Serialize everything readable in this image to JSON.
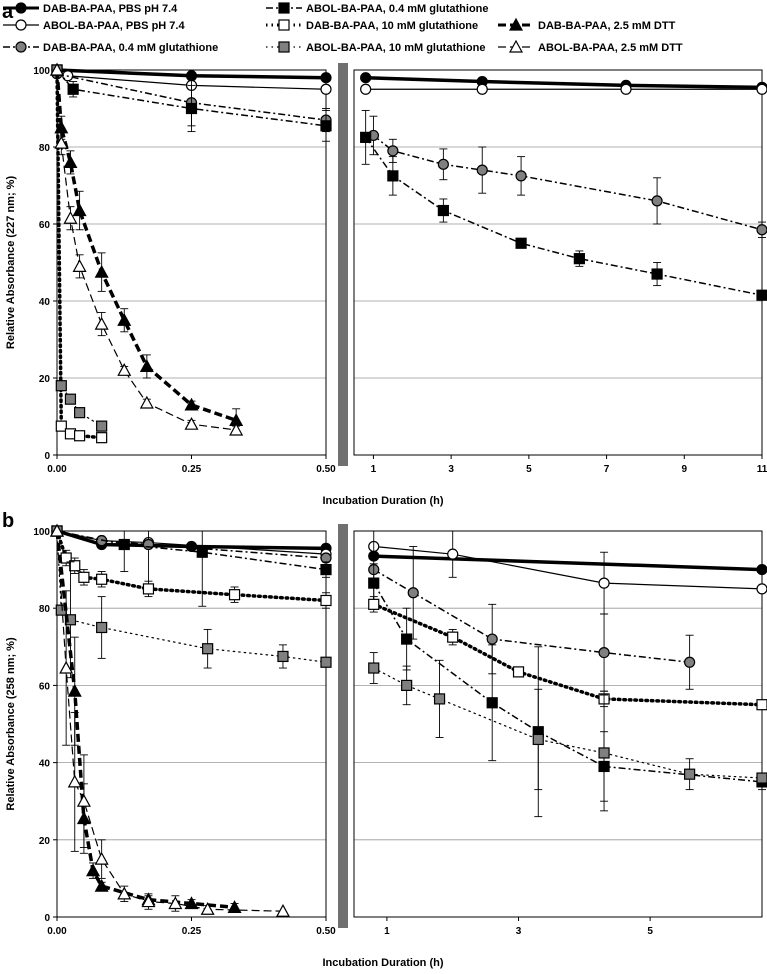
{
  "legend": [
    {
      "label": "DAB-BA-PAA, PBS pH 7.4",
      "marker": "circle",
      "fill": "#000000",
      "dash": "solid",
      "width": 3.5
    },
    {
      "label": "ABOL-BA-PAA, PBS pH 7.4",
      "marker": "circle",
      "fill": "#ffffff",
      "dash": "solid",
      "width": 1.2
    },
    {
      "label": "DAB-BA-PAA, 0.4 mM glutathione",
      "marker": "circle",
      "fill": "#808080",
      "dash": "dashdot",
      "width": 1.5
    },
    {
      "label": "ABOL-BA-PAA, 0.4 mM glutathione",
      "marker": "square",
      "fill": "#000000",
      "dash": "dashdot",
      "width": 1.5
    },
    {
      "label": "DAB-BA-PAA, 10 mM glutathione",
      "marker": "square",
      "fill": "#ffffff",
      "dash": "dotted",
      "width": 3.5
    },
    {
      "label": "ABOL-BA-PAA, 10 mM glutathione",
      "marker": "square",
      "fill": "#808080",
      "dash": "dotted",
      "width": 1.2
    },
    {
      "label": "DAB-BA-PAA, 2.5 mM DTT",
      "marker": "triangle",
      "fill": "#000000",
      "dash": "dashed",
      "width": 3.5
    },
    {
      "label": "ABOL-BA-PAA, 2.5 mM DTT",
      "marker": "triangle",
      "fill": "#ffffff",
      "dash": "dashed",
      "width": 1.2
    }
  ],
  "chart_data": [
    {
      "type": "line",
      "panel": "a",
      "ylabel": "Relative Absorbance (227 nm; %)",
      "xlabel": "Incubation Duration (h)",
      "ylim": [
        0,
        100
      ],
      "yticks": [
        0,
        20,
        40,
        60,
        80,
        100
      ],
      "grid": true,
      "left_segment": {
        "xlim": [
          0,
          0.5
        ],
        "xticks": [
          "0.00",
          "0.25",
          "0.50"
        ],
        "xtick_values": [
          0,
          0.25,
          0.5
        ]
      },
      "right_segment": {
        "xlim": [
          0.5,
          11
        ],
        "xticks": [
          "1",
          "3",
          "5",
          "7",
          "9",
          "11"
        ],
        "xtick_values": [
          1,
          3,
          5,
          7,
          9,
          11
        ]
      },
      "series": [
        {
          "name": "DAB-BA-PAA, PBS pH 7.4",
          "left": [
            [
              0,
              100
            ],
            [
              0.25,
              98.5
            ],
            [
              0.5,
              98
            ]
          ],
          "right": [
            [
              0.8,
              98
            ],
            [
              3.8,
              97
            ],
            [
              7.5,
              96
            ],
            [
              11,
              95.5
            ]
          ]
        },
        {
          "name": "ABOL-BA-PAA, PBS pH 7.4",
          "left": [
            [
              0,
              100
            ],
            [
              0.02,
              98.5
            ],
            [
              0.25,
              96
            ],
            [
              0.5,
              95
            ]
          ],
          "right": [
            [
              0.8,
              95
            ],
            [
              3.8,
              95
            ],
            [
              7.5,
              95
            ],
            [
              11,
              95
            ]
          ]
        },
        {
          "name": "DAB-BA-PAA, 0.4 mM glutathione",
          "left": [
            [
              0,
              99
            ],
            [
              0.25,
              91.5
            ],
            [
              0.5,
              87
            ]
          ],
          "right": [
            [
              1.0,
              83
            ],
            [
              1.5,
              79
            ],
            [
              2.8,
              75.5
            ],
            [
              3.8,
              74
            ],
            [
              4.8,
              72.5
            ],
            [
              8.3,
              66
            ],
            [
              11,
              58.5
            ]
          ],
          "err_left": [
            0,
            6,
            3
          ],
          "err_right": [
            5,
            3,
            4,
            6,
            5,
            6,
            2
          ]
        },
        {
          "name": "ABOL-BA-PAA, 0.4 mM glutathione",
          "left": [
            [
              0,
              100
            ],
            [
              0.03,
              95
            ],
            [
              0.25,
              90
            ],
            [
              0.5,
              85.5
            ]
          ],
          "right": [
            [
              0.8,
              82.5
            ],
            [
              1.5,
              72.5
            ],
            [
              2.8,
              63.5
            ],
            [
              4.8,
              55
            ],
            [
              6.3,
              51
            ],
            [
              8.3,
              47
            ],
            [
              11,
              41.5
            ]
          ],
          "err_left": [
            0,
            2,
            6,
            4
          ],
          "err_right": [
            7,
            5,
            3,
            1,
            2,
            3,
            1
          ]
        },
        {
          "name": "DAB-BA-PAA, 10 mM glutathione",
          "left": [
            [
              0,
              100
            ],
            [
              0.008,
              7.5
            ],
            [
              0.025,
              5.5
            ],
            [
              0.042,
              5
            ],
            [
              0.083,
              4.5
            ]
          ],
          "right": []
        },
        {
          "name": "ABOL-BA-PAA, 10 mM glutathione",
          "left": [
            [
              0,
              100
            ],
            [
              0.008,
              18
            ],
            [
              0.025,
              14.5
            ],
            [
              0.042,
              11
            ],
            [
              0.083,
              7.5
            ]
          ],
          "right": []
        },
        {
          "name": "DAB-BA-PAA, 2.5 mM DTT",
          "left": [
            [
              0,
              100
            ],
            [
              0.008,
              85
            ],
            [
              0.025,
              76
            ],
            [
              0.042,
              63.5
            ],
            [
              0.083,
              47.5
            ],
            [
              0.125,
              35
            ],
            [
              0.167,
              23
            ],
            [
              0.25,
              13
            ],
            [
              0.333,
              9
            ]
          ],
          "right": [],
          "err_left": [
            0,
            3,
            3,
            5,
            5,
            3,
            3,
            1,
            3
          ]
        },
        {
          "name": "ABOL-BA-PAA, 2.5 mM DTT",
          "left": [
            [
              0,
              100
            ],
            [
              0.008,
              81
            ],
            [
              0.025,
              61.5
            ],
            [
              0.042,
              49
            ],
            [
              0.083,
              34
            ],
            [
              0.125,
              22
            ],
            [
              0.167,
              13.5
            ],
            [
              0.25,
              8
            ],
            [
              0.333,
              6.5
            ]
          ],
          "right": [],
          "err_left": [
            0,
            3,
            3,
            3,
            3,
            1,
            1,
            1,
            1
          ]
        }
      ]
    },
    {
      "type": "line",
      "panel": "b",
      "ylabel": "Relative Absorbance (258 nm; %)",
      "xlabel": "Incubation Duration (h)",
      "ylim": [
        0,
        100
      ],
      "yticks": [
        0,
        20,
        40,
        60,
        80,
        100
      ],
      "grid": true,
      "left_segment": {
        "xlim": [
          0,
          0.5
        ],
        "xticks": [
          "0.00",
          "0.25",
          "0.50"
        ],
        "xtick_values": [
          0,
          0.25,
          0.5
        ]
      },
      "right_segment": {
        "xlim": [
          0.5,
          6.7
        ],
        "xticks": [
          "1",
          "3",
          "5"
        ],
        "xtick_values": [
          1,
          3,
          5
        ]
      },
      "series": [
        {
          "name": "DAB-BA-PAA, PBS pH 7.4",
          "left": [
            [
              0,
              100
            ],
            [
              0.083,
              96.5
            ],
            [
              0.25,
              96
            ],
            [
              0.5,
              95.5
            ]
          ],
          "right": [
            [
              0.8,
              93.5
            ],
            [
              6.7,
              90
            ]
          ]
        },
        {
          "name": "ABOL-BA-PAA, PBS pH 7.4",
          "left": [
            [
              0,
              100
            ],
            [
              0.083,
              97.5
            ],
            [
              0.17,
              97
            ],
            [
              0.5,
              94
            ]
          ],
          "right": [
            [
              0.8,
              96
            ],
            [
              2.0,
              94
            ],
            [
              4.3,
              86.5
            ],
            [
              6.7,
              85
            ]
          ],
          "err_right": [
            0,
            6,
            8,
            0
          ]
        },
        {
          "name": "DAB-BA-PAA, 0.4 mM glutathione",
          "left": [
            [
              0,
              100
            ],
            [
              0.083,
              97.5
            ],
            [
              0.17,
              96.5
            ],
            [
              0.5,
              93
            ]
          ],
          "right": [
            [
              0.8,
              90
            ],
            [
              1.4,
              84
            ],
            [
              2.6,
              72
            ],
            [
              4.3,
              68.5
            ],
            [
              5.6,
              66
            ]
          ],
          "err_left": [
            0,
            0,
            12,
            0
          ],
          "err_right": [
            10,
            12,
            9,
            10,
            7
          ]
        },
        {
          "name": "ABOL-BA-PAA, 0.4 mM glutathione",
          "left": [
            [
              0,
              100
            ],
            [
              0.125,
              96.5
            ],
            [
              0.27,
              94.5
            ],
            [
              0.5,
              90
            ]
          ],
          "right": [
            [
              0.8,
              86.5
            ],
            [
              1.3,
              72
            ],
            [
              2.6,
              55.5
            ],
            [
              3.3,
              48
            ],
            [
              4.3,
              39
            ],
            [
              6.7,
              35
            ]
          ],
          "err_left": [
            0,
            7,
            14,
            2
          ],
          "err_right": [
            5,
            8,
            15,
            22,
            9,
            2
          ]
        },
        {
          "name": "DAB-BA-PAA, 10 mM glutathione",
          "left": [
            [
              0,
              100
            ],
            [
              0.017,
              93
            ],
            [
              0.033,
              91
            ],
            [
              0.05,
              88
            ],
            [
              0.083,
              87.5
            ],
            [
              0.17,
              85
            ],
            [
              0.33,
              83.5
            ],
            [
              0.5,
              82
            ]
          ],
          "right": [
            [
              0.8,
              81
            ],
            [
              2.0,
              72.5
            ],
            [
              3.0,
              63.5
            ],
            [
              4.3,
              56.5
            ],
            [
              6.7,
              55
            ]
          ],
          "err_left": [
            0,
            2,
            2,
            2,
            2,
            2,
            2,
            2
          ],
          "err_right": [
            2,
            2,
            1,
            2,
            1
          ]
        },
        {
          "name": "ABOL-BA-PAA, 10 mM glutathione",
          "left": [
            [
              0,
              100
            ],
            [
              0.008,
              79.5
            ],
            [
              0.025,
              77
            ],
            [
              0.083,
              75
            ],
            [
              0.28,
              69.5
            ],
            [
              0.42,
              67.5
            ],
            [
              0.5,
              66
            ]
          ],
          "right": [
            [
              0.8,
              64.5
            ],
            [
              1.3,
              60
            ],
            [
              1.8,
              56.5
            ],
            [
              3.3,
              46
            ],
            [
              4.3,
              42.5
            ],
            [
              5.6,
              37
            ],
            [
              6.7,
              36
            ]
          ],
          "err_left": [
            0,
            0,
            15,
            8,
            5,
            3,
            0
          ],
          "err_right": [
            4,
            5,
            10,
            13,
            15,
            4,
            0
          ]
        },
        {
          "name": "DAB-BA-PAA, 2.5 mM DTT",
          "left": [
            [
              0,
              100
            ],
            [
              0.033,
              58.5
            ],
            [
              0.05,
              25.5
            ],
            [
              0.067,
              12
            ],
            [
              0.083,
              8
            ],
            [
              0.17,
              4.5
            ],
            [
              0.25,
              3.5
            ],
            [
              0.33,
              2.5
            ]
          ],
          "right": [],
          "err_left": [
            0,
            14,
            9,
            2,
            1,
            1,
            1,
            1
          ]
        },
        {
          "name": "ABOL-BA-PAA, 2.5 mM DTT",
          "left": [
            [
              0,
              100
            ],
            [
              0.017,
              64.5
            ],
            [
              0.033,
              35
            ],
            [
              0.05,
              30
            ],
            [
              0.083,
              15
            ],
            [
              0.125,
              6
            ],
            [
              0.17,
              4
            ],
            [
              0.22,
              3.5
            ],
            [
              0.28,
              2
            ],
            [
              0.42,
              1.5
            ]
          ],
          "right": [],
          "err_left": [
            0,
            20,
            18,
            12,
            5,
            2,
            2,
            2,
            1,
            0
          ]
        }
      ]
    }
  ]
}
